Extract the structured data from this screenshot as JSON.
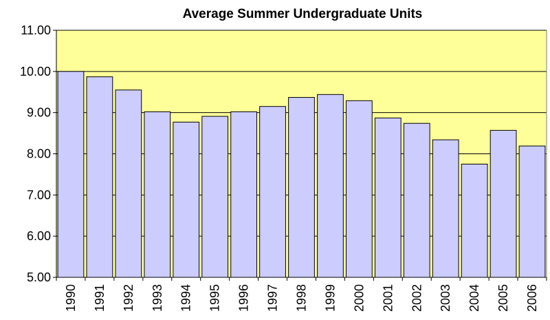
{
  "chart_data": {
    "type": "bar",
    "title": "Average Summer Undergraduate Units",
    "categories": [
      "1990",
      "1991",
      "1992",
      "1993",
      "1994",
      "1995",
      "1996",
      "1997",
      "1998",
      "1999",
      "2000",
      "2001",
      "2002",
      "2003",
      "2004",
      "2005",
      "2006"
    ],
    "values": [
      10.0,
      9.87,
      9.55,
      9.02,
      8.77,
      8.91,
      9.02,
      9.15,
      9.37,
      9.44,
      9.29,
      8.87,
      8.74,
      8.34,
      7.75,
      8.57,
      8.19
    ],
    "color": "#ccccff",
    "background": "#ffff99",
    "ylim": [
      5,
      11
    ],
    "yticks": [
      {
        "value": 5,
        "label": "5.00"
      },
      {
        "value": 6,
        "label": "6.00"
      },
      {
        "value": 7,
        "label": "7.00"
      },
      {
        "value": 8,
        "label": "8.00"
      },
      {
        "value": 9,
        "label": "9.00"
      },
      {
        "value": 10,
        "label": "10.00"
      },
      {
        "value": 11,
        "label": "11.00"
      }
    ],
    "grid": true
  }
}
